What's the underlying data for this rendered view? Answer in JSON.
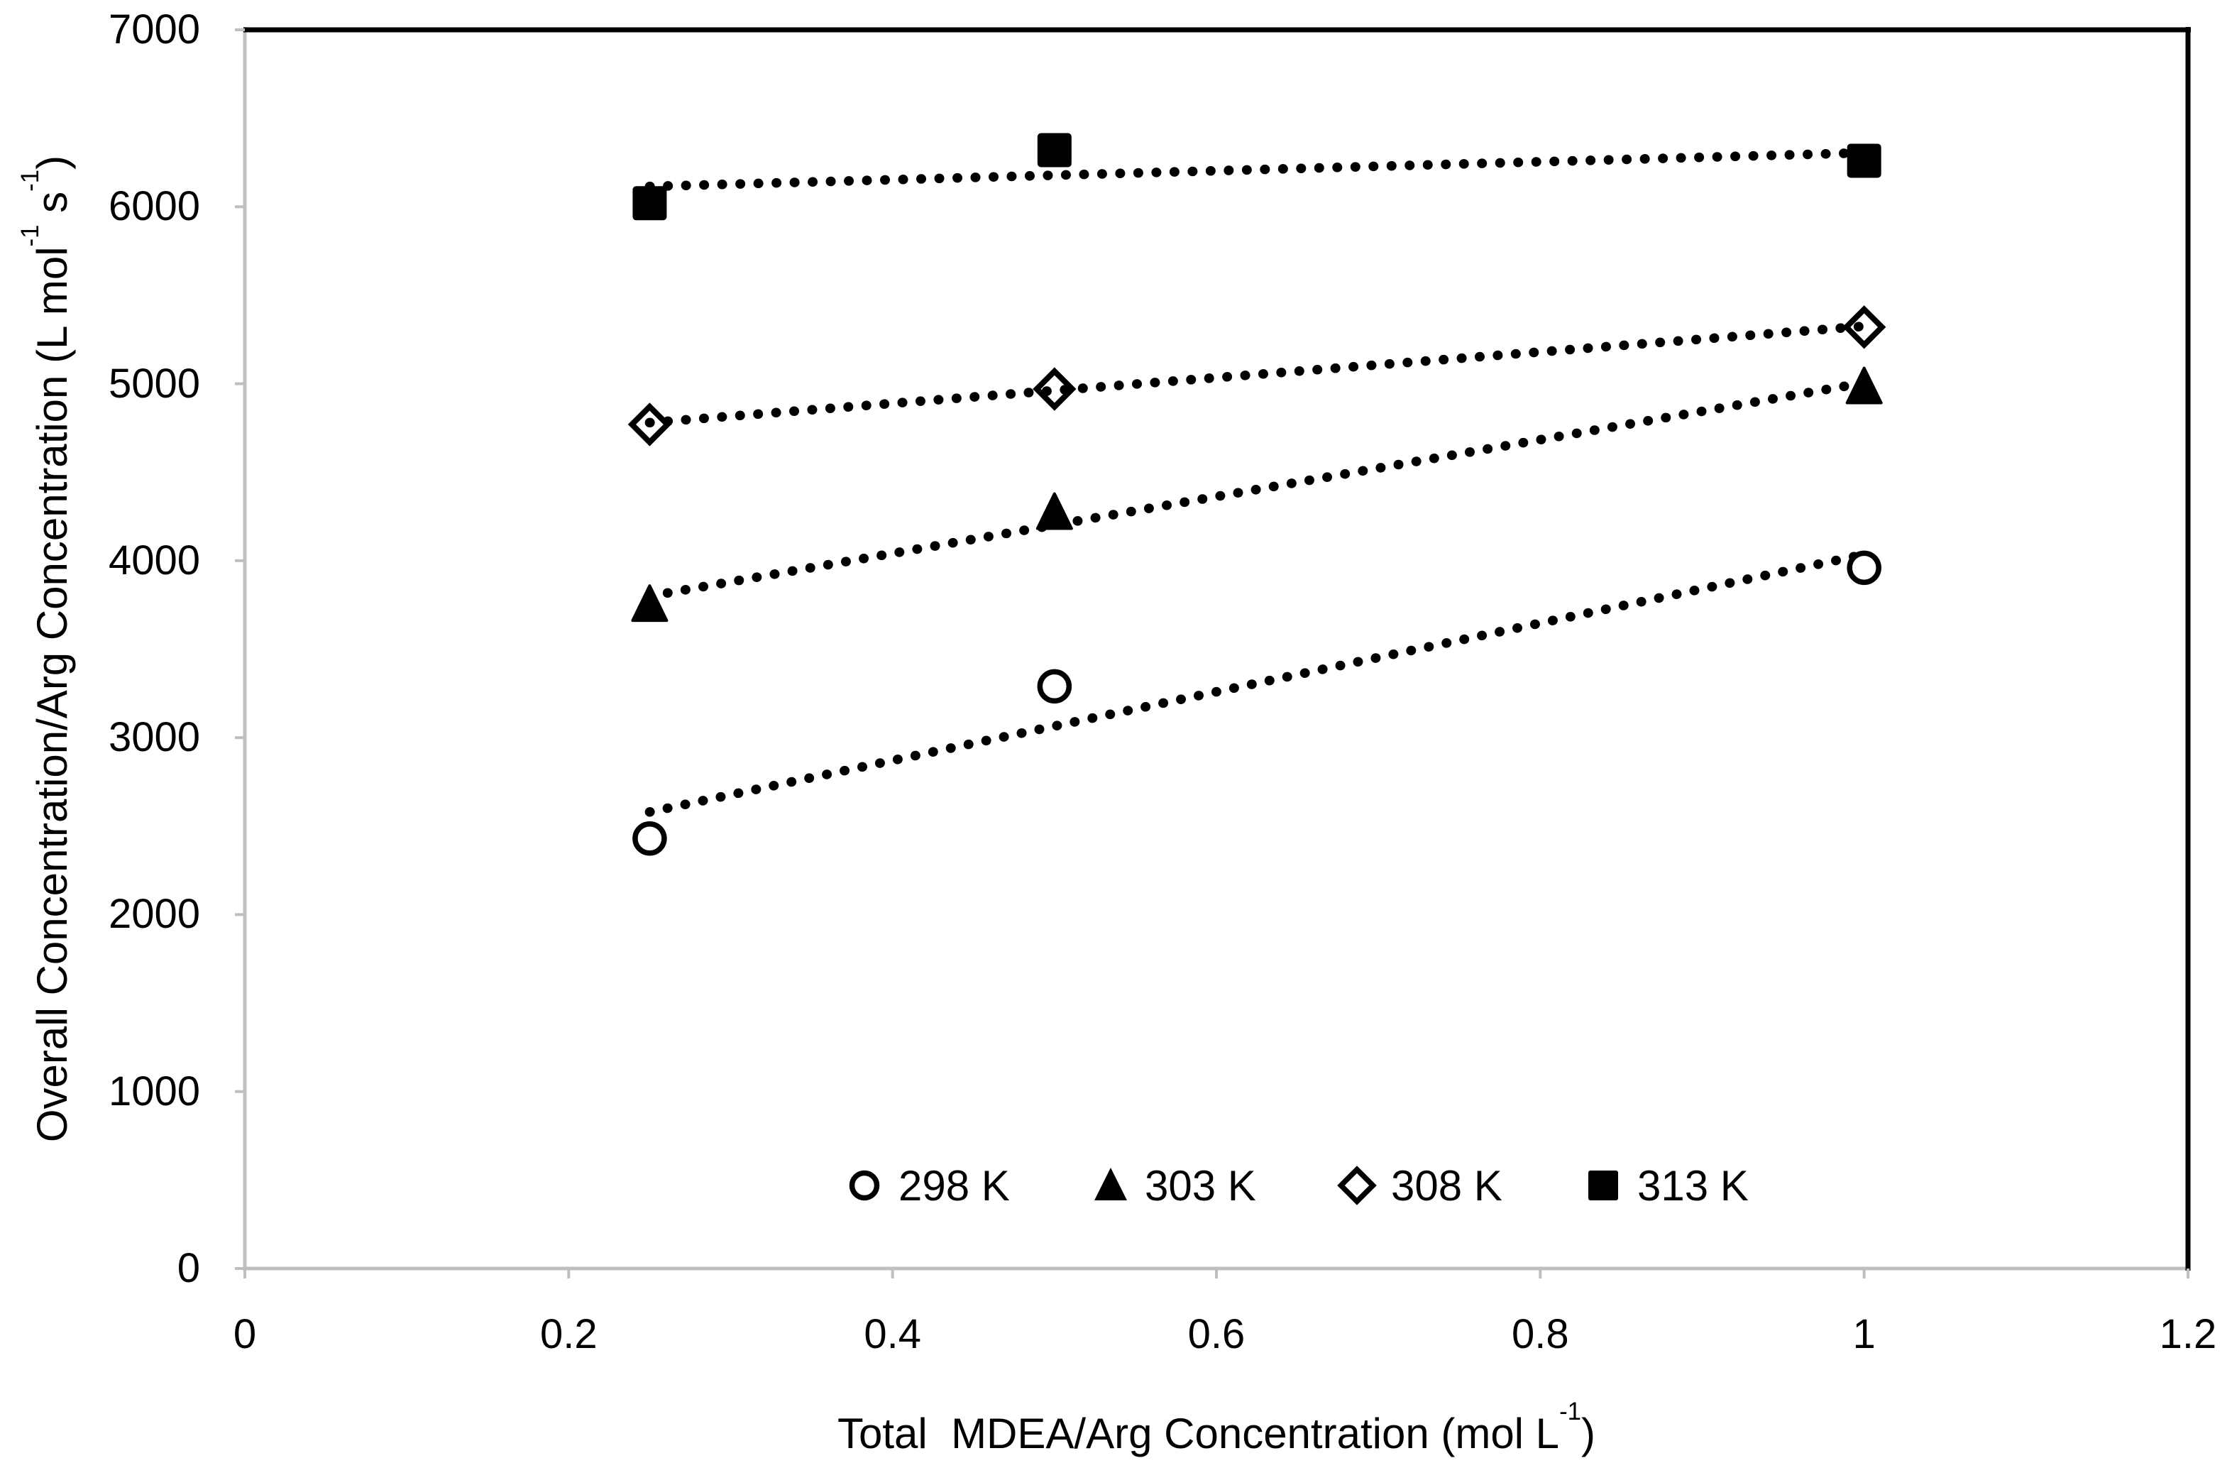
{
  "figure": {
    "y_title_parts": [
      "Overall Concentration/Arg Concentration (L mol",
      "-1",
      " s",
      "-1",
      ")"
    ],
    "x_title_parts": [
      "Total  MDEA/Arg Concentration (mol L",
      "-1",
      ")"
    ]
  },
  "chart_data": {
    "type": "scatter",
    "xlabel": "Total  MDEA/Arg Concentration (mol L-1)",
    "ylabel": "Overall Concentration/Arg Concentration (L mol-1 s-1)",
    "xlim": [
      0,
      1.2
    ],
    "ylim": [
      0,
      7000
    ],
    "x_ticks": [
      "0",
      "0.2",
      "0.4",
      "0.6",
      "0.8",
      "1",
      "1.2"
    ],
    "y_ticks": [
      0,
      1000,
      2000,
      3000,
      4000,
      5000,
      6000,
      7000
    ],
    "grid": false,
    "legend_position": "inside-bottom-center",
    "colors": {
      "marker": "#000000",
      "trendline": "#000000",
      "axis_line": "#bfbfbf",
      "plot_border": "#000000",
      "background": "#ffffff"
    },
    "series": [
      {
        "name": "298 K",
        "marker": "circle-open",
        "x": [
          0.25,
          0.5,
          1.0
        ],
        "y": [
          2430,
          3290,
          3960
        ],
        "trend": {
          "style": "dotted",
          "x": [
            0.25,
            1.0
          ],
          "y": [
            2580,
            4035
          ]
        }
      },
      {
        "name": "303 K",
        "marker": "triangle-filled",
        "x": [
          0.25,
          0.5,
          1.0
        ],
        "y": [
          3750,
          4270,
          4980
        ],
        "trend": {
          "style": "dotted",
          "x": [
            0.25,
            1.0
          ],
          "y": [
            3800,
            5005
          ]
        }
      },
      {
        "name": "308 K",
        "marker": "diamond-open",
        "x": [
          0.25,
          0.5,
          1.0
        ],
        "y": [
          4770,
          4970,
          5320
        ],
        "trend": {
          "style": "dotted",
          "x": [
            0.25,
            1.0
          ],
          "y": [
            4780,
            5325
          ]
        }
      },
      {
        "name": "313 K",
        "marker": "square-filled",
        "x": [
          0.25,
          0.5,
          1.0
        ],
        "y": [
          6020,
          6320,
          6260
        ],
        "trend": {
          "style": "dotted",
          "x": [
            0.25,
            1.0
          ],
          "y": [
            6115,
            6305
          ]
        }
      }
    ]
  }
}
